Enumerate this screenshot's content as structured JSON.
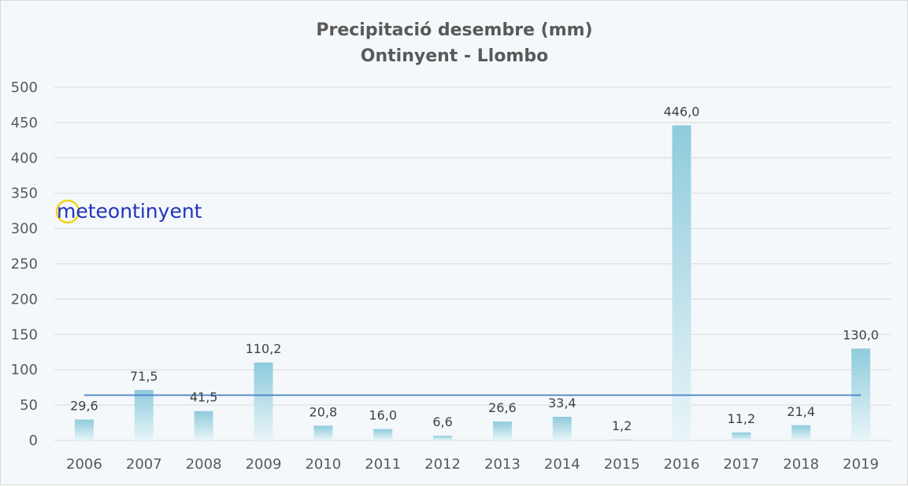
{
  "chart_data": {
    "type": "bar",
    "title": [
      "Precipitació desembre (mm)",
      "Ontinyent - Llombo"
    ],
    "categories": [
      "2006",
      "2007",
      "2008",
      "2009",
      "2010",
      "2011",
      "2012",
      "2013",
      "2014",
      "2015",
      "2016",
      "2017",
      "2018",
      "2019"
    ],
    "values": [
      29.6,
      71.5,
      41.5,
      110.2,
      20.8,
      16.0,
      6.6,
      26.6,
      33.4,
      1.2,
      446.0,
      11.2,
      21.4,
      130.0
    ],
    "data_labels": [
      "29,6",
      "71,5",
      "41,5",
      "110,2",
      "20,8",
      "16,0",
      "6,6",
      "26,6",
      "33,4",
      "1,2",
      "446,0",
      "11,2",
      "21,4",
      "130,0"
    ],
    "mean_line": 64,
    "ylim": [
      0,
      500
    ],
    "yticks": [
      "0",
      "50",
      "100",
      "150",
      "200",
      "250",
      "300",
      "350",
      "400",
      "450",
      "500"
    ],
    "grid": true,
    "colors": {
      "bar_top": "#8ecbdc",
      "bar_bottom": "#e9f5f8",
      "mean_line": "#4a7ec8",
      "grid": "#d9d9d9",
      "background": "#f4f8fb"
    }
  },
  "watermark": {
    "text": "meteontinyent",
    "ring_color": "#f2d21a"
  }
}
